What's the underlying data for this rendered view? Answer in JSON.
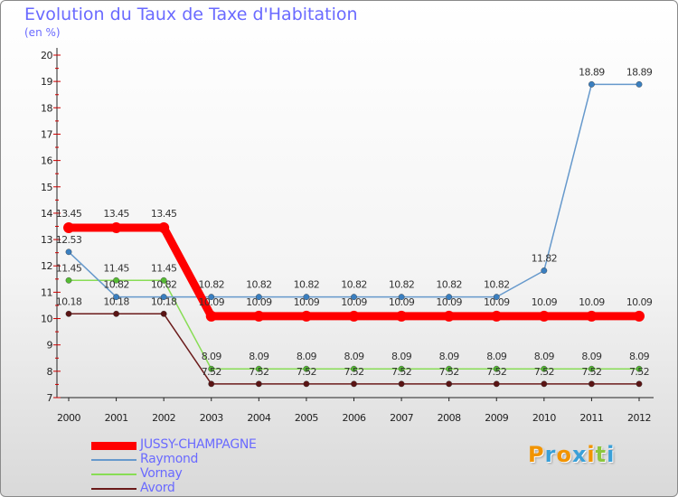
{
  "title": "Evolution du Taux de Taxe d'Habitation",
  "subtitle": "(en %)",
  "logo": {
    "text": "Proxiti",
    "colors": [
      "#f29400",
      "#3aa0d8",
      "#f29400",
      "#3aa0d8",
      "#f29400",
      "#8cc63f",
      "#3aa0d8"
    ]
  },
  "chart_data": {
    "type": "line",
    "x": [
      2000,
      2001,
      2002,
      2003,
      2004,
      2005,
      2006,
      2007,
      2008,
      2009,
      2010,
      2011,
      2012
    ],
    "ylim": [
      7,
      20
    ],
    "yticks": [
      7,
      8,
      9,
      10,
      11,
      12,
      13,
      14,
      15,
      16,
      17,
      18,
      19,
      20
    ],
    "grid": false,
    "legend_position": "bottom-left",
    "series": [
      {
        "name": "JUSSY-CHAMPAGNE",
        "color": "#ff0000",
        "values": [
          13.45,
          13.45,
          13.45,
          10.09,
          10.09,
          10.09,
          10.09,
          10.09,
          10.09,
          10.09,
          10.09,
          10.09,
          10.09
        ],
        "labels": [
          "13.45",
          "13.45",
          "13.45",
          "10.09",
          "10.09",
          "10.09",
          "10.09",
          "10.09",
          "10.09",
          "10.09",
          "10.09",
          "10.09",
          "10.09"
        ]
      },
      {
        "name": "Raymond",
        "color": "#6699cc",
        "values": [
          12.53,
          10.82,
          10.82,
          10.82,
          10.82,
          10.82,
          10.82,
          10.82,
          10.82,
          10.82,
          11.82,
          18.89,
          18.89
        ],
        "labels": [
          "12.53",
          "10.82",
          "10.82",
          "10.82",
          "10.82",
          "10.82",
          "10.82",
          "10.82",
          "10.82",
          "10.82",
          "11.82",
          "18.89",
          "18.89"
        ]
      },
      {
        "name": "Vornay",
        "color": "#88dd55",
        "values": [
          11.45,
          11.45,
          11.45,
          8.09,
          8.09,
          8.09,
          8.09,
          8.09,
          8.09,
          8.09,
          8.09,
          8.09,
          8.09
        ],
        "labels": [
          "11.45",
          "11.45",
          "11.45",
          "8.09",
          "8.09",
          "8.09",
          "8.09",
          "8.09",
          "8.09",
          "8.09",
          "8.09",
          "8.09",
          "8.09"
        ]
      },
      {
        "name": "Avord",
        "color": "#6b1b1b",
        "values": [
          10.18,
          10.18,
          10.18,
          7.52,
          7.52,
          7.52,
          7.52,
          7.52,
          7.52,
          7.52,
          7.52,
          7.52,
          7.52
        ],
        "labels": [
          "10.18",
          "10.18",
          "10.18",
          "7.52",
          "7.52",
          "7.52",
          "7.52",
          "7.52",
          "7.52",
          "7.52",
          "7.52",
          "7.52",
          "7.52"
        ]
      }
    ]
  }
}
